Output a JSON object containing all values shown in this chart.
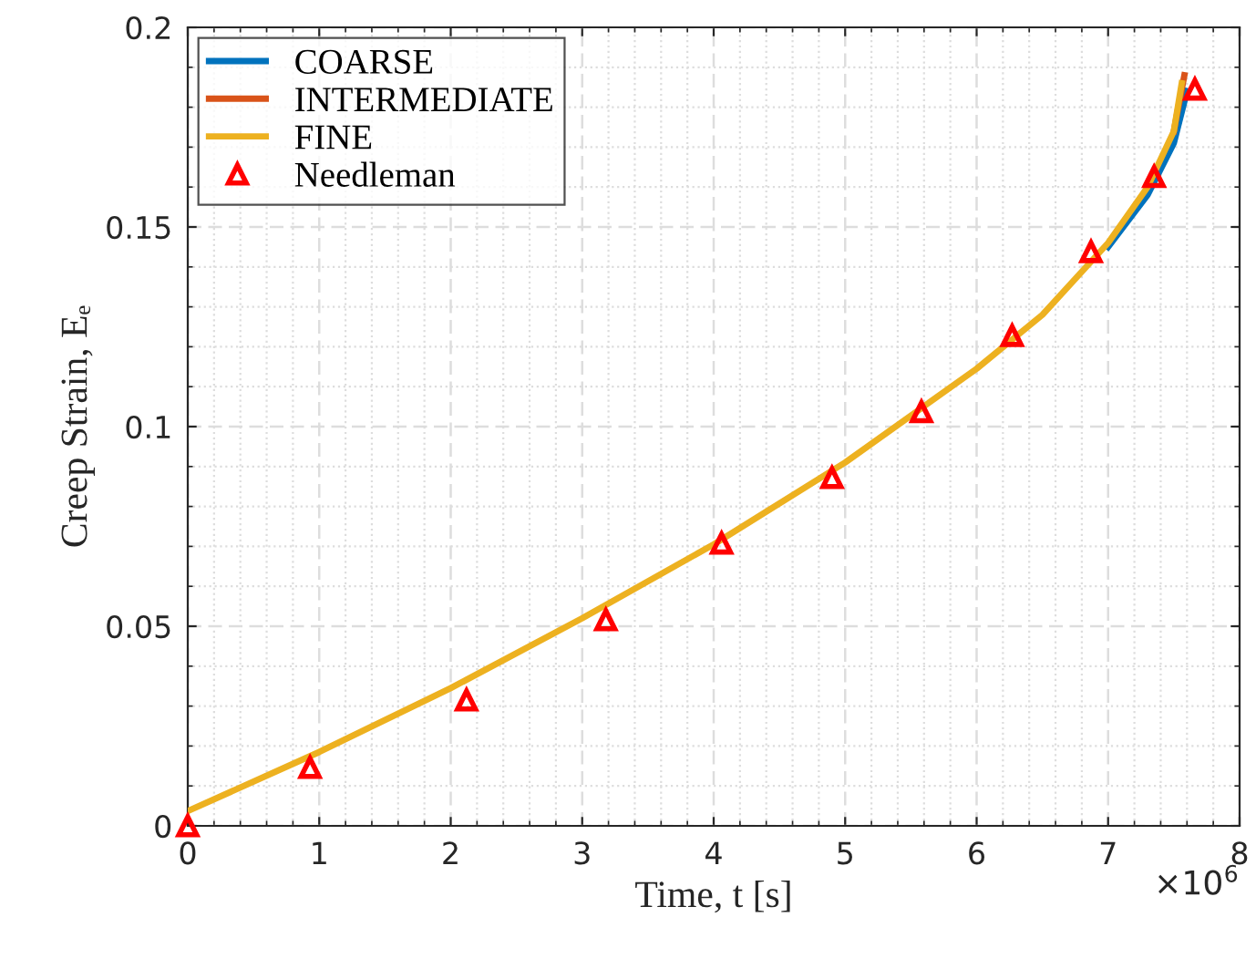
{
  "chart_data": {
    "type": "line",
    "xlabel": "Time, t [s]",
    "ylabel": "Creep Strain, Eₑ",
    "xlim": [
      0,
      8
    ],
    "xticks": [
      0,
      1,
      2,
      3,
      4,
      5,
      6,
      7,
      8
    ],
    "ylim": [
      0,
      0.2
    ],
    "yticks": [
      0,
      0.05,
      0.1,
      0.15,
      0.2
    ],
    "annotations": [
      "×10$^{6}$"
    ],
    "grid": true,
    "legend": "top left",
    "series": [
      {
        "name": "COARSE",
        "color": "#0072bd",
        "x": [
          7,
          7.3,
          7.5,
          7.6
        ],
        "values": [
          0.145,
          0.158,
          0.171,
          0.184
        ]
      },
      {
        "name": "INTERMEDIATE",
        "color": "#d95319",
        "x": [
          7.5,
          7.58
        ],
        "values": [
          0.174,
          0.188
        ]
      },
      {
        "name": "FINE",
        "color": "#edb120",
        "x": [
          0,
          1,
          2,
          3,
          4,
          5,
          6,
          6.5,
          7,
          7.3,
          7.5,
          7.56
        ],
        "values": [
          0.0037,
          0.0185,
          0.0345,
          0.052,
          0.0705,
          0.091,
          0.1145,
          0.128,
          0.146,
          0.16,
          0.174,
          0.186
        ]
      },
      {
        "name": "Needleman",
        "type": "scatter",
        "color": "#ff0000",
        "marker": "triangle",
        "x": [
          0,
          0.93,
          2.12,
          3.18,
          4.06,
          4.9,
          5.58,
          6.27,
          6.87,
          7.35,
          7.66
        ],
        "values": [
          0,
          0.0146,
          0.0315,
          0.0516,
          0.0708,
          0.0872,
          0.1037,
          0.1228,
          0.1438,
          0.1626,
          0.1845
        ]
      }
    ]
  }
}
